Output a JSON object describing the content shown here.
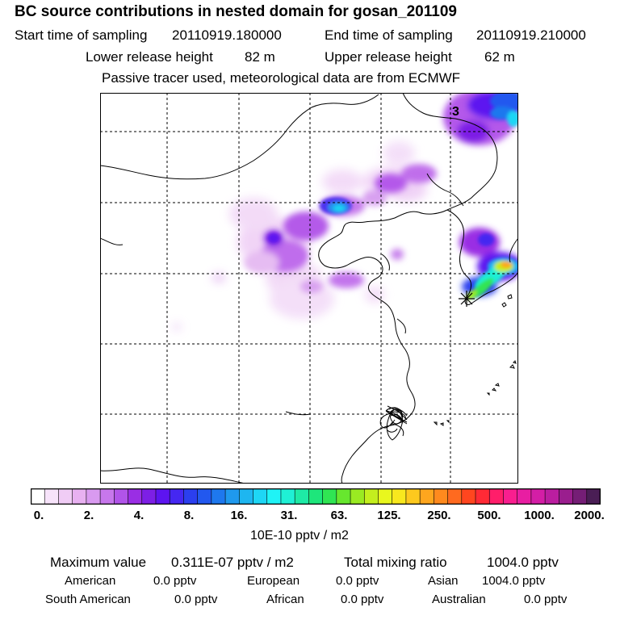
{
  "title": "BC  source contributions in nested domain for gosan_201109",
  "start_label": "Start time of sampling",
  "start_value": "20110919.180000",
  "end_label": "End time of sampling",
  "end_value": "20110919.210000",
  "lower_label": "Lower release height",
  "lower_value": "82 m",
  "upper_label": "Upper release height",
  "upper_value": "62 m",
  "tracer_note": "Passive tracer used, meteorological data are from ECMWF",
  "map": {
    "label_3": "3",
    "receptor_icon": "receptor-star-icon"
  },
  "colorbar": {
    "colors": [
      "#ffffff",
      "#f7e3fa",
      "#f0ccf5",
      "#e8b1f1",
      "#d99af0",
      "#c777ec",
      "#b154e9",
      "#9a2ee4",
      "#7d1fe5",
      "#5d14f0",
      "#4527f1",
      "#2b3fef",
      "#2258ef",
      "#1e78ee",
      "#1f99ee",
      "#1eb6f0",
      "#1ed6f5",
      "#1ff3f6",
      "#1ff0d5",
      "#1eeaa6",
      "#1ee67b",
      "#30e553",
      "#67e72e",
      "#9aea22",
      "#c4ef1e",
      "#e9f71e",
      "#f8e81e",
      "#fdc91e",
      "#fea61e",
      "#ff8a1e",
      "#ff6a1f",
      "#ff461f",
      "#ff2a36",
      "#ff1e6a",
      "#f91e8f",
      "#e81ea2",
      "#d41ea6",
      "#bb1ea0",
      "#9a1e8e",
      "#751e76",
      "#4a1e55"
    ],
    "tick_labels": [
      "0.",
      "2.",
      "4.",
      "8.",
      "16.",
      "31.",
      "63.",
      "125.",
      "250.",
      "500.",
      "1000.",
      "2000."
    ],
    "unit": "10E-10 pptv / m2"
  },
  "stats": {
    "max_label": "Maximum value",
    "max_value": "0.311E-07 pptv / m2",
    "total_label": "Total mixing ratio",
    "total_value": "1004.0 pptv",
    "american_label": "American",
    "american_value": "0.0 pptv",
    "european_label": "European",
    "european_value": "0.0 pptv",
    "asian_label": "Asian",
    "asian_value": "1004.0 pptv",
    "south_american_label": "South American",
    "south_american_value": "0.0 pptv",
    "african_label": "African",
    "african_value": "0.0 pptv",
    "australian_label": "Australian",
    "australian_value": "0.0 pptv"
  }
}
